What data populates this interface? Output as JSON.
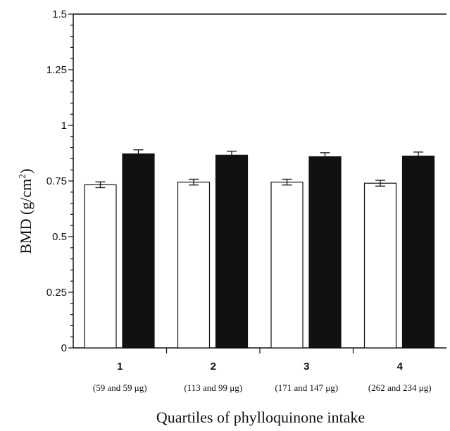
{
  "chart_data": {
    "type": "bar",
    "title": "",
    "xlabel": "Quartiles of phylloquinone intake",
    "ylabel": "BMD (g/cm²)",
    "ylabel_parts": {
      "main": "BMD (g/cm",
      "sup": "2",
      "close": ")"
    },
    "ylim": [
      0,
      1.5
    ],
    "yticks": [
      0,
      0.25,
      0.5,
      0.75,
      1,
      1.25,
      1.5
    ],
    "ytick_labels": [
      "0",
      "0.25",
      "0.5",
      "0.75",
      "1",
      "1.25",
      "1.5"
    ],
    "categories": [
      "1",
      "2",
      "3",
      "4"
    ],
    "category_sublabels": [
      "(59 and 59 μg)",
      "(113 and 99 μg)",
      "(171 and 147 μg)",
      "(262 and 234 μg)"
    ],
    "series": [
      {
        "fill": "#ffffff",
        "values": [
          0.733,
          0.745,
          0.745,
          0.74
        ],
        "errors": [
          0.013,
          0.013,
          0.013,
          0.013
        ]
      },
      {
        "fill": "#111111",
        "values": [
          0.872,
          0.866,
          0.859,
          0.862
        ],
        "errors": [
          0.018,
          0.018,
          0.018,
          0.018
        ]
      }
    ],
    "grid": false,
    "legend": "none"
  }
}
